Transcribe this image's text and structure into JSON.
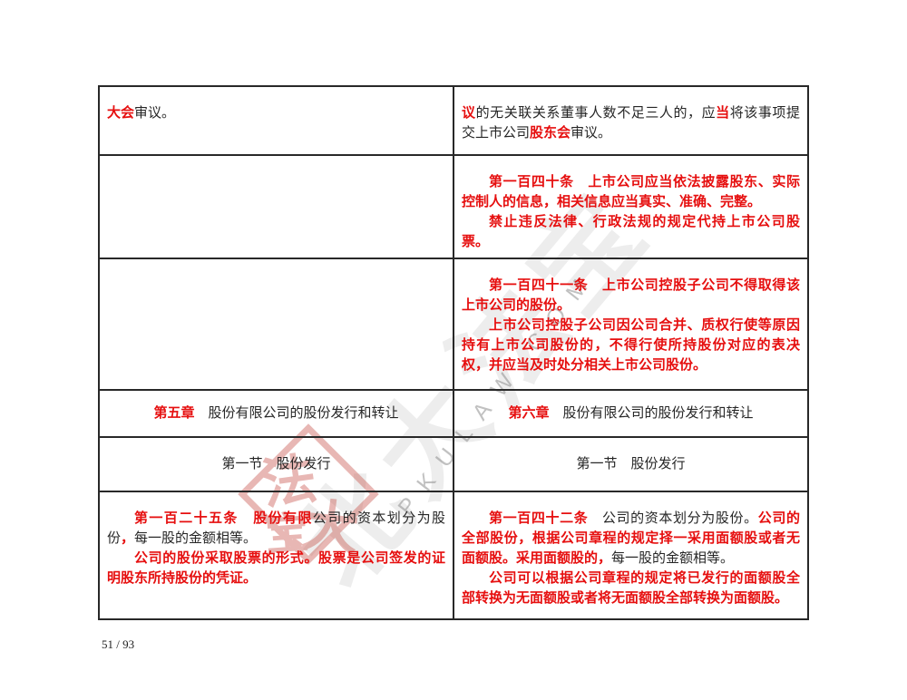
{
  "colors": {
    "accent_red": "#e60f0f",
    "text_black": "#262626",
    "border_color": "#282828",
    "wm_gray": "#8a8a8a",
    "seal_red": "#c9564e"
  },
  "page": {
    "number_label": "51 / 93"
  },
  "watermark": {
    "calligraphy": "北大法宝",
    "latin": "PKULAW.COM",
    "seal": [
      "法",
      "大",
      "宝"
    ]
  },
  "table": {
    "rows": [
      {
        "cells": [
          {
            "paragraphs": [
              {
                "indent": false,
                "segments": [
                  {
                    "t": "大会",
                    "red": true
                  },
                  {
                    "t": "审议。",
                    "red": false
                  }
                ]
              }
            ]
          },
          {
            "paragraphs": [
              {
                "indent": false,
                "segments": [
                  {
                    "t": "议",
                    "red": true
                  },
                  {
                    "t": "的无关联关系董事人数不足三人的，应",
                    "red": false
                  },
                  {
                    "t": "当",
                    "red": true
                  },
                  {
                    "t": "将该事项提交上市公司",
                    "red": false
                  },
                  {
                    "t": "股东会",
                    "red": true
                  },
                  {
                    "t": "审议。",
                    "red": false
                  }
                ]
              }
            ]
          }
        ]
      },
      {
        "cells": [
          {
            "paragraphs": []
          },
          {
            "paragraphs": [
              {
                "indent": true,
                "segments": [
                  {
                    "t": "第一百四十条　上市公司应当依法披露股东、实际控制人的信息，相关信息应当真实、准确、完整。",
                    "red": true
                  }
                ]
              },
              {
                "indent": true,
                "segments": [
                  {
                    "t": "禁止违反法律、行政法规的规定代持上市公司股票。",
                    "red": true
                  }
                ]
              }
            ]
          }
        ]
      },
      {
        "cells": [
          {
            "paragraphs": []
          },
          {
            "paragraphs": [
              {
                "indent": true,
                "segments": [
                  {
                    "t": "第一百四十一条　上市公司控股子公司不得取得该上市公司的股份。",
                    "red": true
                  }
                ]
              },
              {
                "indent": true,
                "segments": [
                  {
                    "t": "上市公司控股子公司因公司合并、质权行使等原因持有上市公司股份的，不得行使所持股份对应的表决权，并应当及时处分相关上市公司股份。",
                    "red": true
                  }
                ]
              }
            ]
          }
        ]
      },
      {
        "center": true,
        "cells": [
          {
            "paragraphs": [
              {
                "indent": false,
                "segments": [
                  {
                    "t": "第五章",
                    "red": true
                  },
                  {
                    "t": "　股份有限公司的股份发行和转让",
                    "red": false
                  }
                ]
              }
            ]
          },
          {
            "paragraphs": [
              {
                "indent": false,
                "segments": [
                  {
                    "t": "第六章",
                    "red": true
                  },
                  {
                    "t": "　股份有限公司的股份发行和转让",
                    "red": false
                  }
                ]
              }
            ]
          }
        ]
      },
      {
        "center": true,
        "cells": [
          {
            "paragraphs": [
              {
                "indent": false,
                "segments": [
                  {
                    "t": "第一节　股份发行",
                    "red": false
                  }
                ]
              }
            ]
          },
          {
            "paragraphs": [
              {
                "indent": false,
                "segments": [
                  {
                    "t": "第一节　股份发行",
                    "red": false
                  }
                ]
              }
            ]
          }
        ]
      },
      {
        "cells": [
          {
            "paragraphs": [
              {
                "indent": true,
                "segments": [
                  {
                    "t": "第一百二十五条　股份有限",
                    "red": true
                  },
                  {
                    "t": "公司的资本划分为股份",
                    "red": false
                  },
                  {
                    "t": "，",
                    "red": true
                  },
                  {
                    "t": "每一股的金额相等。",
                    "red": false
                  }
                ]
              },
              {
                "indent": true,
                "segments": [
                  {
                    "t": "公司的股份采取股票的形式。股票是公司签发的证明股东所持股份的凭证。",
                    "red": true
                  }
                ]
              }
            ]
          },
          {
            "paragraphs": [
              {
                "indent": true,
                "segments": [
                  {
                    "t": "第一百四十二条",
                    "red": true
                  },
                  {
                    "t": "　公司的资本划分为股份。",
                    "red": false
                  },
                  {
                    "t": "公司的全部股份，根据公司章程的规定择一采用面额股或者无面额股。采用面额股的，",
                    "red": true
                  },
                  {
                    "t": "每一股的金额相等。",
                    "red": false
                  }
                ]
              },
              {
                "indent": true,
                "segments": [
                  {
                    "t": "公司可以根据公司章程的规定将已发行的面额股全部转换为无面额股或者将无面额股全部转换为面额股。",
                    "red": true
                  }
                ]
              }
            ]
          }
        ]
      }
    ]
  }
}
